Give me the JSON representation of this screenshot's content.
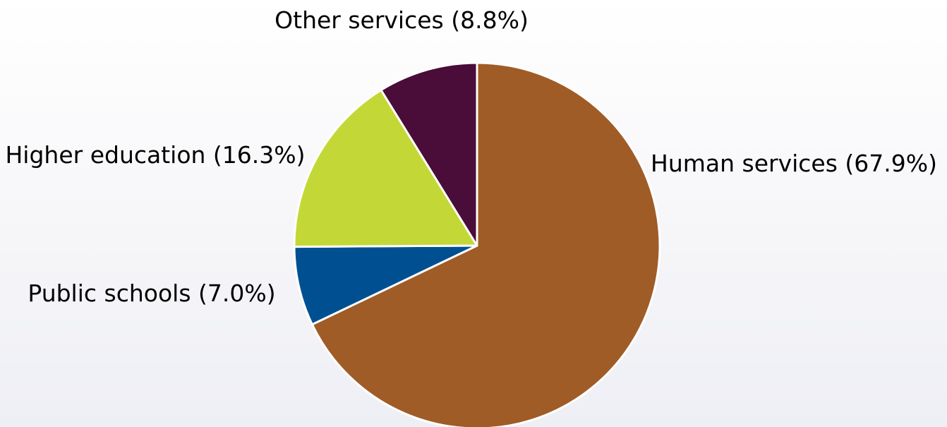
{
  "chart_data": {
    "type": "pie",
    "title": "",
    "slices": [
      {
        "name": "Human services",
        "value": 67.9,
        "label": "Human services (67.9%)",
        "color": "#a05c26",
        "label_position": "right"
      },
      {
        "name": "Public schools",
        "value": 7.0,
        "label": "Public schools (7.0%)",
        "color": "#005091",
        "label_position": "left"
      },
      {
        "name": "Higher education",
        "value": 16.3,
        "label": "Higher education (16.3%)",
        "color": "#c3d837",
        "label_position": "upper-left"
      },
      {
        "name": "Other services",
        "value": 8.8,
        "label": "Other services (8.8%)",
        "color": "#4a0c38",
        "label_position": "top"
      }
    ],
    "start_angle": "12 o'clock",
    "direction": "clockwise",
    "legend": "none"
  }
}
